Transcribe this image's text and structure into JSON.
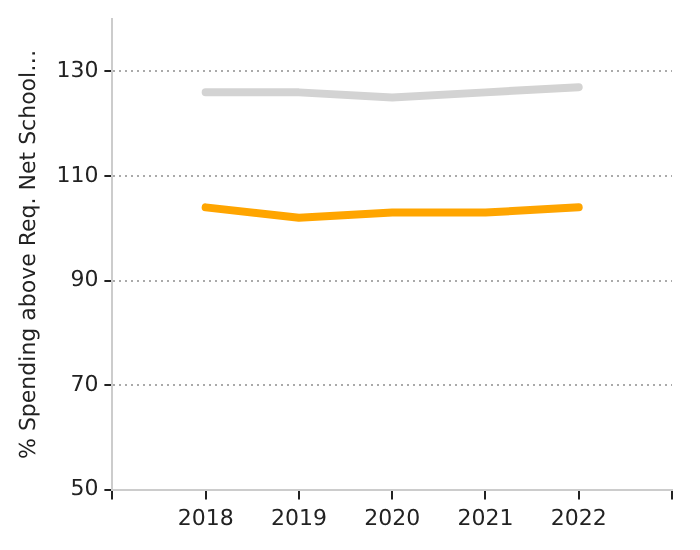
{
  "chart_data": {
    "type": "line",
    "ylabel": "% Spending above Req. Net School…",
    "x": [
      2018,
      2019,
      2020,
      2021,
      2022
    ],
    "series": [
      {
        "color": "#d3d3d3",
        "values": [
          126,
          126,
          125,
          126,
          127
        ]
      },
      {
        "color": "#ffa500",
        "values": [
          104,
          102,
          103,
          103,
          104
        ]
      }
    ],
    "xlim": [
      2017,
      2023
    ],
    "xticks": [
      {
        "value": 2017,
        "label": null
      },
      2018,
      2019,
      2020,
      2021,
      2022,
      {
        "value": 2023,
        "label": null
      }
    ],
    "ylim": [
      50,
      140
    ],
    "yticks": [
      50,
      70,
      90,
      110,
      130
    ],
    "grid": "y",
    "legend": false,
    "marker": "none",
    "line_style": "solid"
  }
}
